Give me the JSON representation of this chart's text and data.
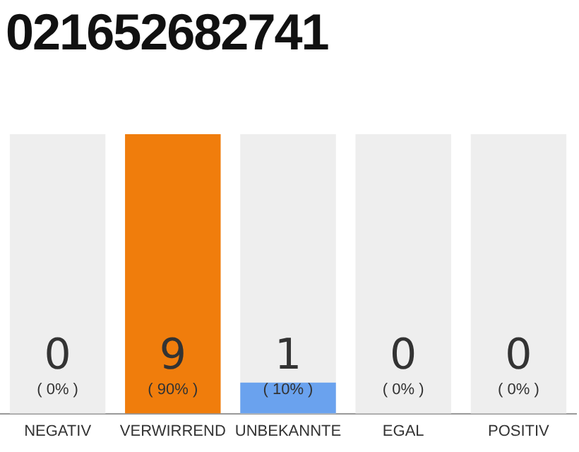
{
  "chart_data": {
    "type": "bar",
    "title": "021652682741",
    "categories": [
      "NEGATIV",
      "VERWIRREND",
      "UNBEKANNTE",
      "EGAL",
      "POSITIV"
    ],
    "values": [
      0,
      90,
      10,
      0,
      0
    ],
    "colors": [
      "#f07d0c",
      "#f07d0c",
      "#6aa2ee",
      "#f07d0c",
      "#f07d0c"
    ],
    "value_labels": [
      "( 0% )",
      "( 90% )",
      "( 10% )",
      "( 0% )",
      "( 0% )"
    ],
    "annotations": [
      "0",
      "9",
      "1",
      "0",
      "0"
    ],
    "bands": [
      {
        "axis": "x",
        "from": "NEGATIV",
        "to": "NEGATIV",
        "color": "#eeeeee"
      },
      {
        "axis": "x",
        "from": "UNBEKANNTE",
        "to": "UNBEKANNTE",
        "color": "#eeeeee"
      },
      {
        "axis": "x",
        "from": "EGAL",
        "to": "EGAL",
        "color": "#eeeeee"
      },
      {
        "axis": "x",
        "from": "POSITIV",
        "to": "POSITIV",
        "color": "#eeeeee"
      }
    ],
    "grid": false,
    "legend": false
  }
}
